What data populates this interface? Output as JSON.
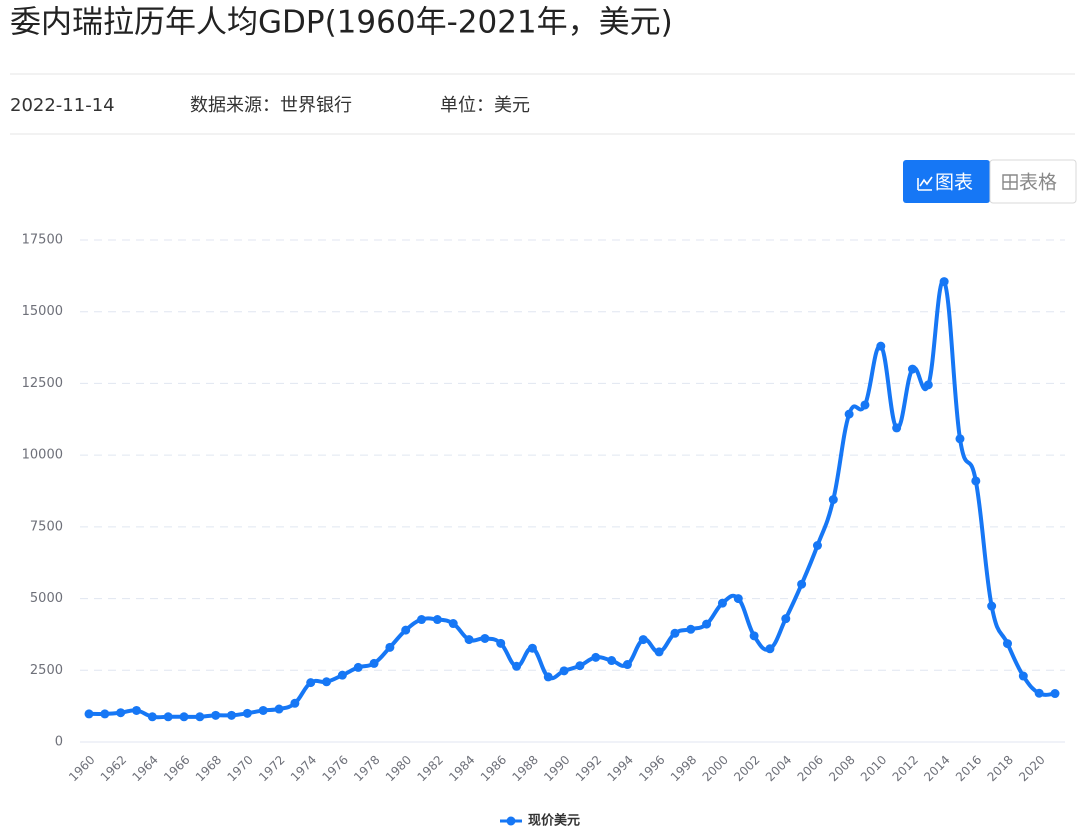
{
  "title": "委内瑞拉历年人均GDP(1960年-2021年，美元)",
  "meta": {
    "date": "2022-11-14",
    "source": "数据来源：世界银行",
    "unit": "单位：美元"
  },
  "buttons": {
    "chart": "图表",
    "table": "表格"
  },
  "chart_data": {
    "type": "line",
    "categories": [
      "1960",
      null,
      "1962",
      null,
      "1964",
      null,
      "1966",
      null,
      "1968",
      null,
      "1970",
      null,
      "1972",
      null,
      "1974",
      null,
      "1976",
      null,
      "1978",
      null,
      "1980",
      null,
      "1982",
      null,
      "1984",
      null,
      "1986",
      null,
      "1988",
      null,
      "1990",
      null,
      "1992",
      null,
      "1994",
      null,
      "1996",
      null,
      "1998",
      null,
      "2000",
      null,
      "2002",
      null,
      "2004",
      null,
      "2006",
      null,
      "2008",
      null,
      "2010",
      null,
      "2012",
      null,
      "2014",
      null,
      "2016",
      null,
      "2018",
      null,
      "2020",
      null
    ],
    "series": [
      {
        "name": "现价美元",
        "color": "#1677f5",
        "values": [
          980,
          980,
          1020,
          1100,
          880,
          880,
          880,
          880,
          930,
          930,
          1000,
          1100,
          1150,
          1350,
          2070,
          2100,
          2330,
          2600,
          2740,
          3300,
          3900,
          4270,
          4270,
          4130,
          3570,
          3610,
          3440,
          2640,
          3270,
          2270,
          2480,
          2660,
          2950,
          2840,
          2700,
          3570,
          3140,
          3790,
          3930,
          4110,
          4840,
          5000,
          3700,
          3250,
          4300,
          5500,
          6850,
          8450,
          11430,
          11750,
          13800,
          10950,
          13000,
          12450,
          16050,
          10570,
          9100,
          4740,
          3430,
          2300,
          1700,
          1690
        ]
      }
    ],
    "ylim": [
      0,
      17500
    ],
    "yticks": [
      0,
      2500,
      5000,
      7500,
      10000,
      12500,
      15000,
      17500
    ],
    "grid": true
  }
}
